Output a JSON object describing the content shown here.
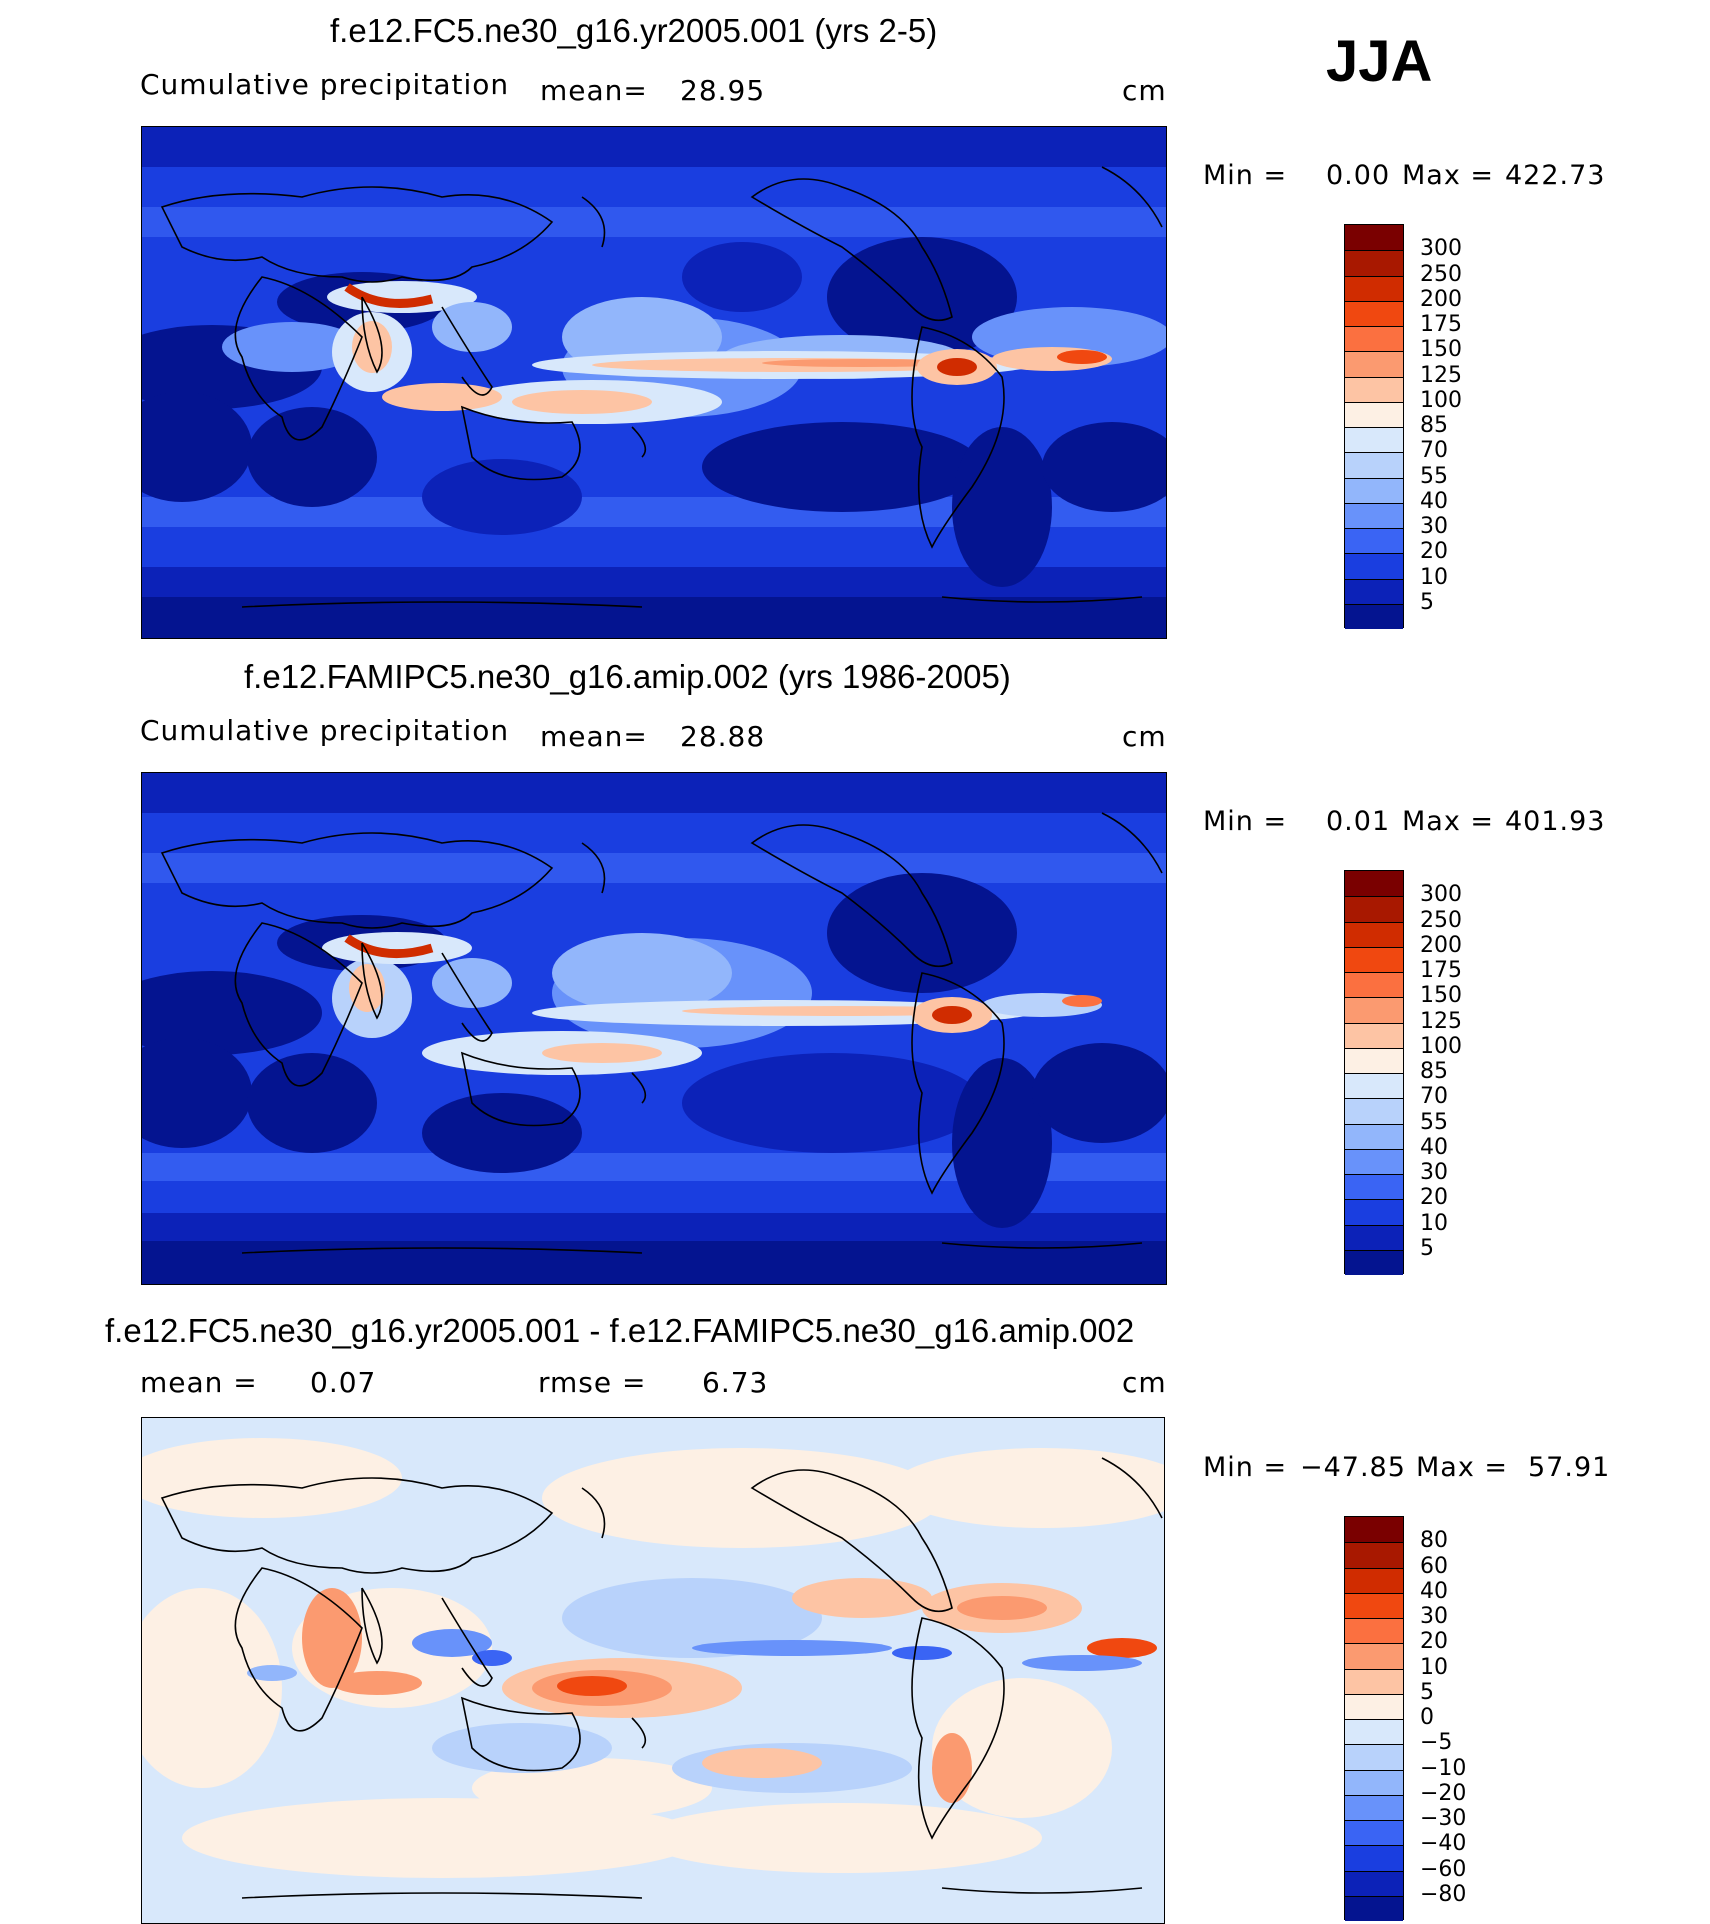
{
  "season": "JJA",
  "panels": [
    {
      "title": "f.e12.FC5.ne30_g16.yr2005.001 (yrs 2-5)",
      "left_label": "Cumulative  precipitation",
      "stat1": "mean=",
      "stat1_value": "28.95",
      "stat2": "",
      "stat2_value": "",
      "units": "cm",
      "min_label": "Min  =",
      "min_value": "0.00",
      "max_label": "Max  =",
      "max_value": "422.73"
    },
    {
      "title": "f.e12.FAMIPC5.ne30_g16.amip.002 (yrs 1986-2005)",
      "left_label": "Cumulative  precipitation",
      "stat1": "mean=",
      "stat1_value": "28.88",
      "stat2": "",
      "stat2_value": "",
      "units": "cm",
      "min_label": "Min  =",
      "min_value": "0.01",
      "max_label": "Max  =",
      "max_value": "401.93"
    },
    {
      "title": "f.e12.FC5.ne30_g16.yr2005.001 - f.e12.FAMIPC5.ne30_g16.amip.002",
      "left_label": "mean  =",
      "stat1": "0.07",
      "stat1_value": "",
      "stat2": "rmse  =",
      "stat2_value": "6.73",
      "units": "cm",
      "min_label": "Min  =",
      "min_value": "−47.85",
      "max_label": "Max  =",
      "max_value": "57.91"
    }
  ],
  "chart_data": [
    {
      "type": "heatmap",
      "title": "f.e12.FC5.ne30_g16.yr2005.001 (yrs 2-5)",
      "colorbar": {
        "levels": [
          "300",
          "250",
          "200",
          "175",
          "150",
          "125",
          "100",
          "85",
          "70",
          "55",
          "40",
          "30",
          "20",
          "10",
          "5"
        ],
        "colors": [
          "#7a0000",
          "#a81800",
          "#d02c00",
          "#f04810",
          "#fb7040",
          "#fb9a70",
          "#fdc4a4",
          "#fdf0e4",
          "#d8e8fb",
          "#b8d2fb",
          "#92b6fb",
          "#6892fa",
          "#3a64f4",
          "#1a3ee0",
          "#0c22b8",
          "#041490"
        ]
      },
      "scale": {
        "min": 0.0,
        "max": 422.73,
        "mean": 28.95,
        "units": "cm"
      }
    },
    {
      "type": "heatmap",
      "title": "f.e12.FAMIPC5.ne30_g16.amip.002 (yrs 1986-2005)",
      "colorbar": {
        "levels": [
          "300",
          "250",
          "200",
          "175",
          "150",
          "125",
          "100",
          "85",
          "70",
          "55",
          "40",
          "30",
          "20",
          "10",
          "5"
        ],
        "colors": [
          "#7a0000",
          "#a81800",
          "#d02c00",
          "#f04810",
          "#fb7040",
          "#fb9a70",
          "#fdc4a4",
          "#fdf0e4",
          "#d8e8fb",
          "#b8d2fb",
          "#92b6fb",
          "#6892fa",
          "#3a64f4",
          "#1a3ee0",
          "#0c22b8",
          "#041490"
        ]
      },
      "scale": {
        "min": 0.01,
        "max": 401.93,
        "mean": 28.88,
        "units": "cm"
      }
    },
    {
      "type": "heatmap",
      "title": "f.e12.FC5.ne30_g16.yr2005.001 - f.e12.FAMIPC5.ne30_g16.amip.002",
      "colorbar": {
        "levels": [
          "80",
          "60",
          "40",
          "30",
          "20",
          "10",
          "5",
          "0",
          "−5",
          "−10",
          "−20",
          "−30",
          "−40",
          "−60",
          "−80"
        ],
        "colors": [
          "#7a0000",
          "#a81800",
          "#d02c00",
          "#f04810",
          "#fb7040",
          "#fb9a70",
          "#fdc4a4",
          "#fdf0e4",
          "#d8e8fb",
          "#b8d2fb",
          "#92b6fb",
          "#6892fa",
          "#3a64f4",
          "#1a3ee0",
          "#0c22b8",
          "#041490"
        ]
      },
      "scale": {
        "min": -47.85,
        "max": 57.91,
        "mean": 0.07,
        "rmse": 6.73,
        "units": "cm"
      }
    }
  ],
  "colors": {
    "deep_blue": "#041490",
    "mid_blue": "#2a56e8",
    "light_blue": "#d8e8fb",
    "peach": "#fdf0e4",
    "red": "#d02c00"
  }
}
